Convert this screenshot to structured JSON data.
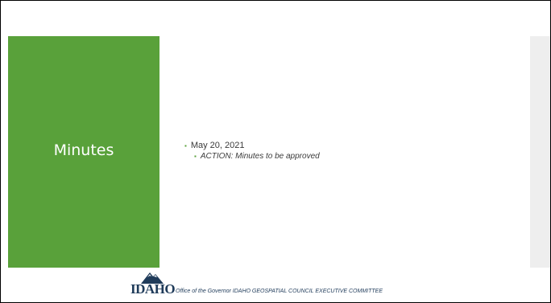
{
  "slide": {
    "title": "Minutes",
    "bullets": [
      {
        "text": "May 20, 2021",
        "sub": [
          "ACTION: Minutes to be approved"
        ]
      }
    ]
  },
  "footer": {
    "logo_text": "IDAHO",
    "text": "Office of the Governor IDAHO GEOSPATIAL COUNCIL EXECUTIVE COMMITTEE"
  },
  "colors": {
    "accent_green": "#59a13a",
    "side_gray": "#eeeeee",
    "logo_navy": "#1f3b5a"
  }
}
